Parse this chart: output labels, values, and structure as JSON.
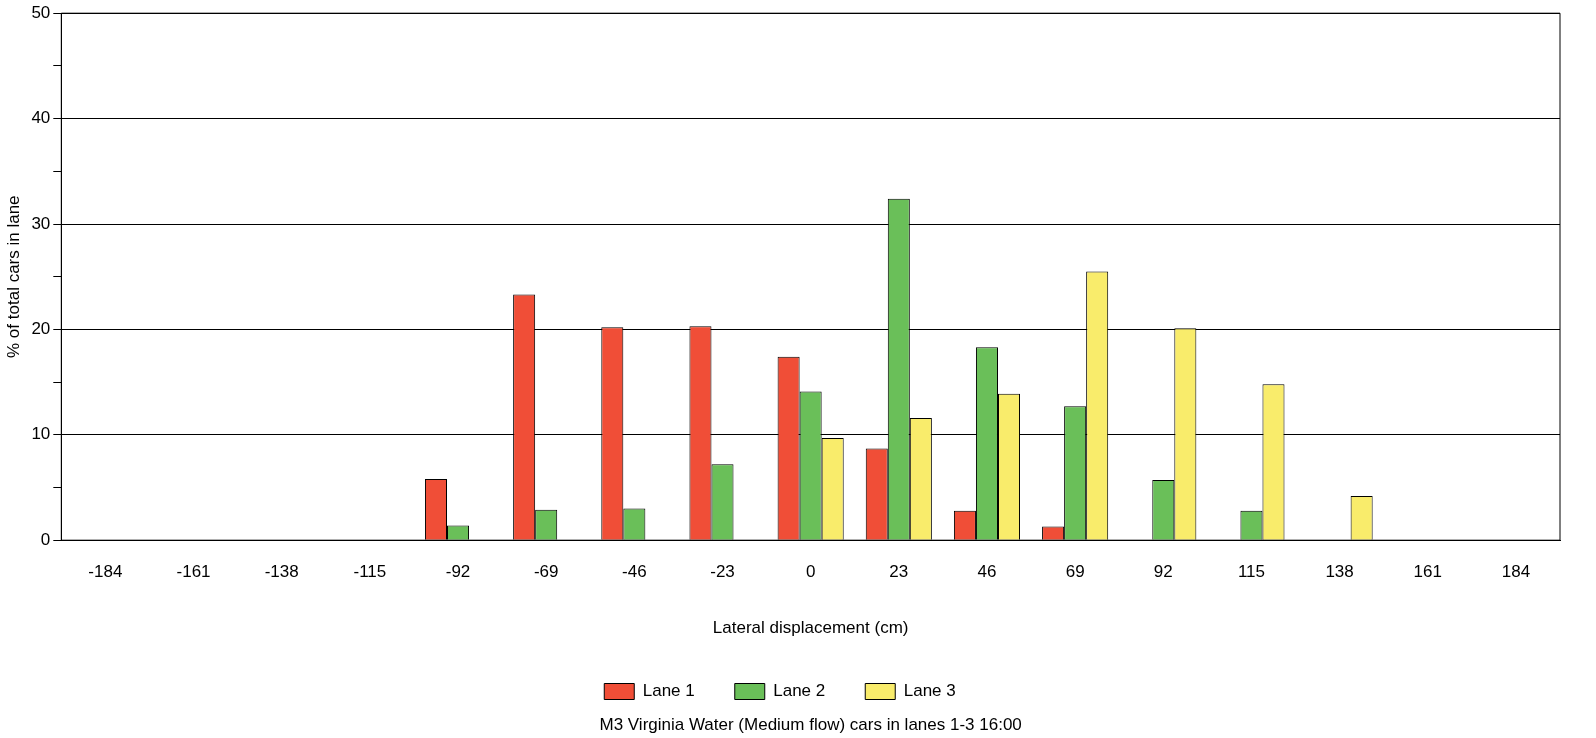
{
  "chart_data": {
    "type": "bar",
    "xlabel": "Lateral displacement (cm)",
    "ylabel": "% of total cars in lane",
    "categories": [
      "-184",
      "-161",
      "-138",
      "-115",
      "-92",
      "-69",
      "-46",
      "-23",
      "0",
      "23",
      "46",
      "69",
      "92",
      "115",
      "138",
      "161",
      "184"
    ],
    "series": [
      {
        "name": "Lane 1",
        "color": "#f04e37",
        "values": [
          0,
          0,
          0,
          0,
          5.8,
          23.3,
          20.2,
          20.3,
          17.4,
          8.7,
          2.8,
          1.3,
          0,
          0,
          0,
          0,
          0
        ]
      },
      {
        "name": "Lane 2",
        "color": "#6abf59",
        "values": [
          0,
          0,
          0,
          0,
          1.4,
          2.9,
          3.0,
          7.2,
          14.1,
          32.4,
          18.3,
          12.7,
          5.7,
          2.8,
          0,
          0,
          0
        ]
      },
      {
        "name": "Lane 3",
        "color": "#f9ec6b",
        "values": [
          0,
          0,
          0,
          0,
          0,
          0,
          0,
          0,
          9.7,
          11.6,
          13.9,
          25.5,
          20.1,
          14.8,
          4.2,
          0,
          0
        ]
      }
    ],
    "ylim": [
      0,
      50
    ],
    "yticks": [
      0,
      {
        "value": 5,
        "label": null
      },
      10,
      {
        "value": 15,
        "label": null
      },
      20,
      {
        "value": 25,
        "label": null
      },
      30,
      {
        "value": 35,
        "label": null
      },
      40,
      {
        "value": 45,
        "label": null
      },
      50
    ],
    "grid": "y",
    "legend": "bottom",
    "annotations": [
      "M3 Virginia Water (Medium flow) cars in lanes 1-3 16:00"
    ]
  }
}
